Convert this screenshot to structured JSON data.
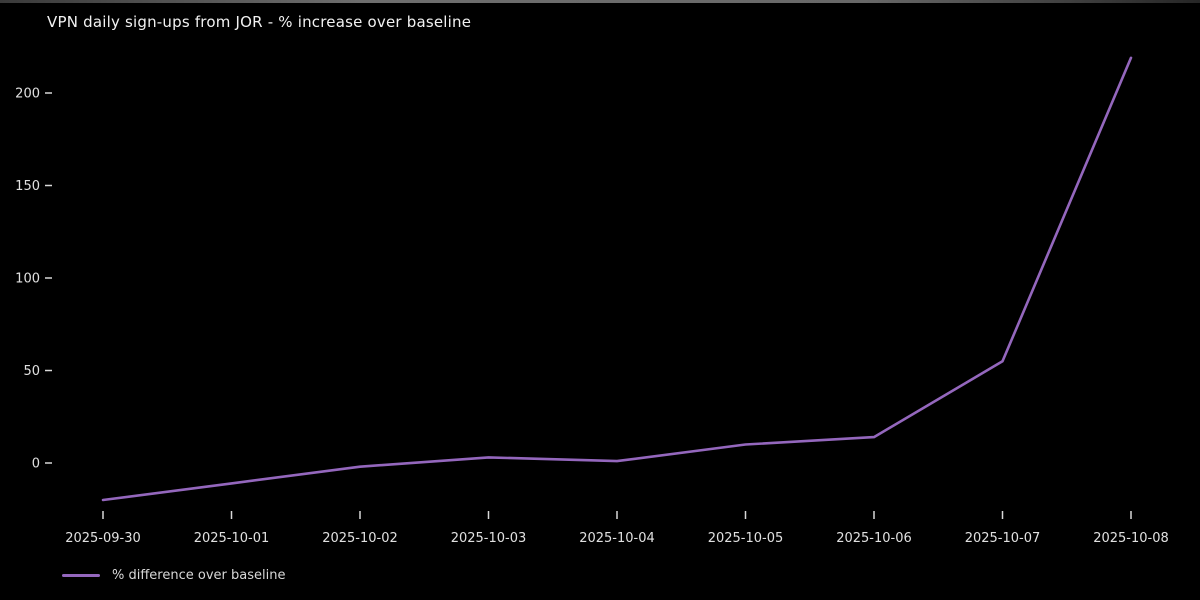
{
  "header": {
    "title": "VPN daily sign-ups from JOR - % increase over baseline"
  },
  "colors": {
    "background": "#000000",
    "line": "#9467bd",
    "text": "#e0e0e0",
    "title_text": "#f2f2f2"
  },
  "chart_data": {
    "type": "line",
    "title": "VPN daily sign-ups from JOR - % increase over baseline",
    "x": [
      "2025-09-30",
      "2025-10-01",
      "2025-10-02",
      "2025-10-03",
      "2025-10-04",
      "2025-10-05",
      "2025-10-06",
      "2025-10-07",
      "2025-10-08"
    ],
    "series": [
      {
        "name": "% difference over baseline",
        "values": [
          -20,
          -11,
          -2,
          3,
          1,
          10,
          14,
          55,
          219
        ]
      }
    ],
    "xlabel": "",
    "ylabel": "",
    "yticks": [
      0,
      50,
      100,
      150,
      200
    ],
    "ylim": [
      -30,
      230
    ],
    "grid": false,
    "legend_position": "lower-left",
    "line_color": "#9467bd",
    "background_color": "#000000"
  }
}
